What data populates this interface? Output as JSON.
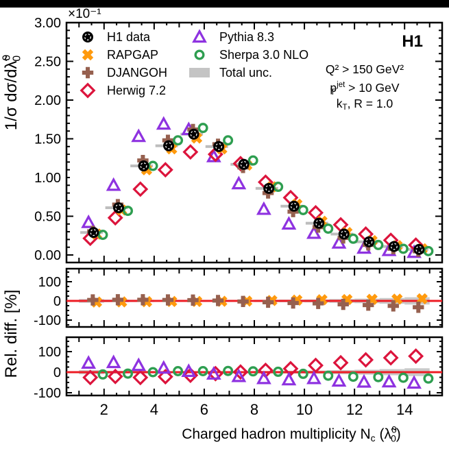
{
  "window": {
    "top_bar_color": "#000000",
    "background": "#ffffff"
  },
  "chart_data": {
    "type": "scatter",
    "experiment_label": "H1",
    "multiplier_label": "×10⁻¹",
    "x_title_segments": [
      {
        "t": "Charged hadron multiplicity N"
      },
      {
        "sub": "c"
      },
      {
        "t": " ("
      },
      {
        "t": "λ̃"
      },
      {
        "stack": [
          "0",
          "0"
        ]
      },
      {
        "t": ")"
      }
    ],
    "y_title_main_segments": [
      {
        "t": "1/σ dσ/dλ̃"
      },
      {
        "stack": [
          "0",
          "0"
        ]
      }
    ],
    "y_title_ratio_segments": [
      {
        "t": "Rel. diff. [%]"
      }
    ],
    "annotations": [
      {
        "name": "q2-cut",
        "segments": [
          {
            "t": "Q² > 150 GeV²"
          }
        ]
      },
      {
        "name": "pt-cut",
        "segments": [
          {
            "t": "p"
          },
          {
            "stack": [
              "jet",
              "T"
            ]
          },
          {
            "t": " > 10 GeV"
          }
        ]
      },
      {
        "name": "jet-def",
        "segments": [
          {
            "t": "k"
          },
          {
            "sub": "T"
          },
          {
            "t": ", R = 1.0"
          }
        ]
      }
    ],
    "legend": [
      {
        "label": "H1 data",
        "marker": "circle-dashed",
        "color": "#000000"
      },
      {
        "label": "RAPGAP",
        "marker": "x-cross",
        "color": "#FF9A0E"
      },
      {
        "label": "DJANGOH",
        "marker": "plus",
        "color": "#96604F"
      },
      {
        "label": "Herwig 7.2",
        "marker": "diamond",
        "color": "#DC143C"
      },
      {
        "label": "Pythia 8.3",
        "marker": "triangle",
        "color": "#8E32E0"
      },
      {
        "label": "Sherpa 3.0 NLO",
        "marker": "circle-open",
        "color": "#2E9E50"
      },
      {
        "label": "Total unc.",
        "marker": "band",
        "color": "#C4C4C4"
      }
    ],
    "x_axis": {
      "range": [
        0.5,
        15.5
      ],
      "ticks": [
        2,
        4,
        6,
        8,
        10,
        12,
        14
      ],
      "tick_labels": [
        "2",
        "4",
        "6",
        "8",
        "10",
        "12",
        "14"
      ]
    },
    "main_panel": {
      "y_range": [
        -0.1,
        3.0
      ],
      "yticks": [
        0,
        0.5,
        1.0,
        1.5,
        2.0,
        2.5,
        3.0
      ],
      "ytick_labels": [
        "0.00",
        "0.50",
        "1.00",
        "1.50",
        "2.00",
        "2.50",
        "3.00"
      ]
    },
    "ratio_panels": {
      "yticks": [
        -100,
        0,
        100
      ],
      "ytick_labels": [
        "-100",
        "0",
        "100"
      ],
      "zero_line_color": "#ED1C24",
      "unc_band_color": "#C9C9C9"
    },
    "bins": [
      1.5,
      2.5,
      3.5,
      4.5,
      5.5,
      6.5,
      7.5,
      8.5,
      9.5,
      10.5,
      11.5,
      12.5,
      13.5,
      14.5
    ],
    "total_unc_halfwidth_pct": [
      10,
      7,
      6,
      5,
      5,
      5,
      5,
      6,
      7,
      8,
      10,
      12,
      15,
      19
    ],
    "series": [
      {
        "name": "H1 data",
        "marker": "circle-dashed",
        "color": "#000000",
        "x_offset": 0.08,
        "values": [
          0.29,
          0.61,
          1.15,
          1.41,
          1.56,
          1.4,
          1.17,
          0.86,
          0.63,
          0.41,
          0.27,
          0.17,
          0.11,
          0.072
        ]
      },
      {
        "name": "RAPGAP",
        "marker": "x-cross",
        "color": "#FF9A0E",
        "x_offset": 0.2,
        "ratio_panel": "mid",
        "values": [
          0.27,
          0.58,
          1.1,
          1.37,
          1.51,
          1.37,
          1.16,
          0.88,
          0.655,
          0.435,
          0.29,
          0.185,
          0.12,
          0.08
        ],
        "rel_diff": [
          -6,
          -5,
          -4,
          -3,
          -3,
          -2,
          -1,
          2,
          4,
          6,
          7,
          8,
          9,
          11
        ]
      },
      {
        "name": "DJANGOH",
        "marker": "plus",
        "color": "#96604F",
        "x_offset": 0.05,
        "ratio_panel": "mid",
        "values": [
          0.305,
          0.65,
          1.22,
          1.48,
          1.62,
          1.43,
          1.13,
          0.8,
          0.56,
          0.36,
          0.22,
          0.13,
          0.081,
          0.048
        ],
        "rel_diff": [
          5,
          6,
          6,
          5,
          4,
          2,
          -3,
          -7,
          -11,
          -13,
          -18,
          -22,
          -26,
          -33
        ]
      },
      {
        "name": "Herwig 7.2",
        "marker": "diamond",
        "color": "#DC143C",
        "x_offset": -0.05,
        "ratio_panel": "bot",
        "values": [
          0.215,
          0.48,
          0.85,
          1.1,
          1.33,
          1.3,
          1.18,
          0.94,
          0.74,
          0.545,
          0.39,
          0.27,
          0.19,
          0.128
        ],
        "rel_diff": [
          -26,
          -21,
          -26,
          -22,
          -15,
          -7,
          1,
          9,
          17,
          33,
          46,
          60,
          70,
          78
        ]
      },
      {
        "name": "Pythia 8.3",
        "marker": "triangle",
        "color": "#8E32E0",
        "x_offset": -0.12,
        "ratio_panel": "bot",
        "values": [
          0.42,
          0.9,
          1.53,
          1.69,
          1.62,
          1.27,
          0.92,
          0.59,
          0.4,
          0.28,
          0.154,
          0.088,
          0.058,
          0.034
        ],
        "rel_diff": [
          44,
          47,
          33,
          20,
          4,
          -9,
          -21,
          -31,
          -37,
          -31,
          -43,
          -48,
          -47,
          -53
        ]
      },
      {
        "name": "Sherpa 3.0 NLO",
        "marker": "circle-open",
        "color": "#2E9E50",
        "x_offset": 0.45,
        "ratio_panel": "bot",
        "values": [
          0.26,
          0.57,
          1.15,
          1.48,
          1.64,
          1.48,
          1.22,
          0.88,
          0.58,
          0.34,
          0.21,
          0.129,
          0.08,
          0.05
        ],
        "rel_diff": [
          -11,
          -7,
          0,
          5,
          5,
          6,
          4,
          2,
          -8,
          -17,
          -22,
          -24,
          -27,
          -31
        ]
      }
    ]
  }
}
